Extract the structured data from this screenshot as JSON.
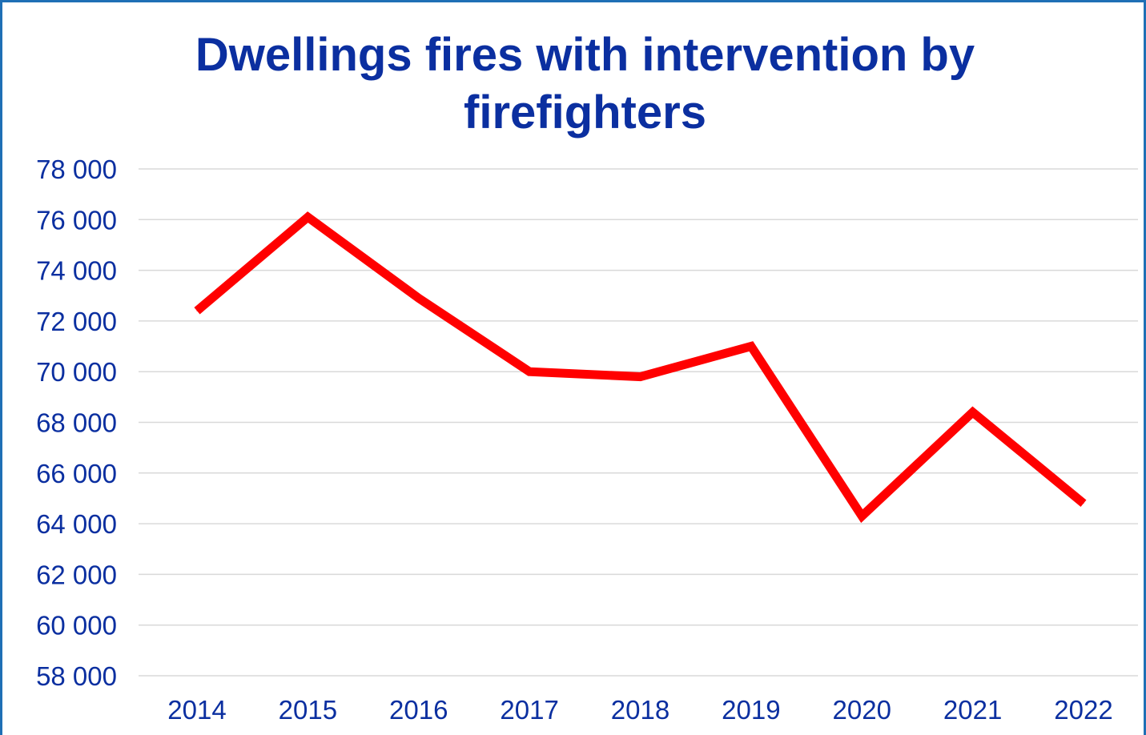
{
  "chart_data": {
    "type": "line",
    "title": "Dwellings fires with intervention by firefighters",
    "xlabel": "",
    "ylabel": "",
    "categories": [
      "2014",
      "2015",
      "2016",
      "2017",
      "2018",
      "2019",
      "2020",
      "2021",
      "2022"
    ],
    "series": [
      {
        "values": [
          72400,
          76100,
          72900,
          70000,
          69800,
          71000,
          64300,
          68400,
          64800
        ],
        "color": "#ff0000"
      }
    ],
    "ylim": [
      58000,
      78000
    ],
    "yticks": [
      58000,
      60000,
      62000,
      64000,
      66000,
      68000,
      70000,
      72000,
      74000,
      76000,
      78000
    ],
    "ytick_labels": [
      "58 000",
      "60 000",
      "62 000",
      "64 000",
      "66 000",
      "68 000",
      "70 000",
      "72 000",
      "74 000",
      "76 000",
      "78 000"
    ],
    "grid": true,
    "legend": "none",
    "colors": {
      "text": "#0b2fa0",
      "line": "#ff0000",
      "grid": "#d9d9d9",
      "frame": "#1f6fb5"
    }
  }
}
